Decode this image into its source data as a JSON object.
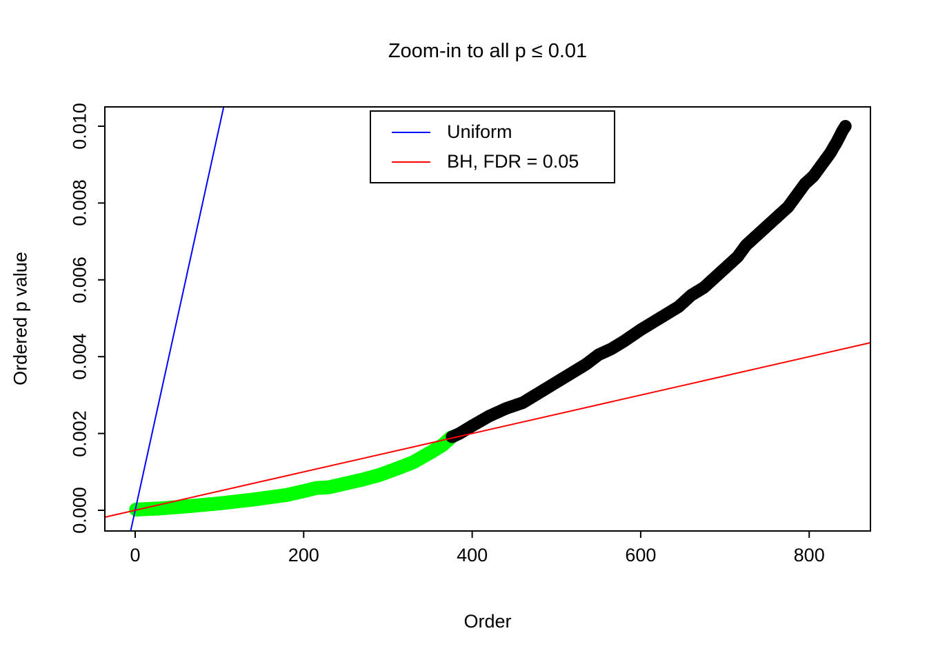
{
  "chart_data": {
    "type": "scatter",
    "title": "Zoom-in to all p ≤ 0.01",
    "xlabel": "Order",
    "ylabel": "Ordered p value",
    "xlim": [
      -36,
      873
    ],
    "ylim": [
      -0.00054,
      0.0105
    ],
    "x_ticks": [
      0,
      200,
      400,
      600,
      800
    ],
    "x_tick_labels": [
      "0",
      "200",
      "400",
      "600",
      "800"
    ],
    "y_ticks": [
      0.0,
      0.002,
      0.004,
      0.006,
      0.008,
      0.01
    ],
    "y_tick_labels": [
      "0.000",
      "0.002",
      "0.004",
      "0.006",
      "0.008",
      "0.010"
    ],
    "n_points": 843,
    "significant_threshold_order": 375,
    "colors": {
      "significant": "#00ff00",
      "nonsignificant": "#000000",
      "uniform_line": "#0000ff",
      "bh_line": "#ff0000",
      "frame": "#000000",
      "background": "#ffffff"
    },
    "curve_anchors": [
      [
        1,
        2e-05
      ],
      [
        30,
        5e-05
      ],
      [
        60,
        0.0001
      ],
      [
        100,
        0.00018
      ],
      [
        140,
        0.00028
      ],
      [
        180,
        0.0004
      ],
      [
        200,
        0.0005
      ],
      [
        215,
        0.00058
      ],
      [
        230,
        0.0006
      ],
      [
        250,
        0.0007
      ],
      [
        270,
        0.0008
      ],
      [
        290,
        0.00092
      ],
      [
        310,
        0.00108
      ],
      [
        330,
        0.00125
      ],
      [
        350,
        0.0015
      ],
      [
        365,
        0.0017
      ],
      [
        375,
        0.0019
      ],
      [
        385,
        0.002
      ],
      [
        400,
        0.0022
      ],
      [
        420,
        0.00245
      ],
      [
        440,
        0.00265
      ],
      [
        460,
        0.0028
      ],
      [
        475,
        0.003
      ],
      [
        490,
        0.0032
      ],
      [
        505,
        0.0034
      ],
      [
        520,
        0.0036
      ],
      [
        535,
        0.0038
      ],
      [
        550,
        0.00405
      ],
      [
        565,
        0.0042
      ],
      [
        580,
        0.0044
      ],
      [
        600,
        0.0047
      ],
      [
        615,
        0.0049
      ],
      [
        630,
        0.0051
      ],
      [
        645,
        0.0053
      ],
      [
        660,
        0.0056
      ],
      [
        675,
        0.0058
      ],
      [
        685,
        0.006
      ],
      [
        695,
        0.0062
      ],
      [
        705,
        0.0064
      ],
      [
        715,
        0.0066
      ],
      [
        725,
        0.0069
      ],
      [
        735,
        0.0071
      ],
      [
        745,
        0.0073
      ],
      [
        755,
        0.0075
      ],
      [
        765,
        0.0077
      ],
      [
        775,
        0.0079
      ],
      [
        785,
        0.0082
      ],
      [
        795,
        0.0085
      ],
      [
        805,
        0.0087
      ],
      [
        815,
        0.009
      ],
      [
        825,
        0.0093
      ],
      [
        833,
        0.0096
      ],
      [
        840,
        0.0099
      ],
      [
        843,
        0.01
      ]
    ],
    "lines": [
      {
        "name": "Uniform",
        "color": "#0000ff",
        "slope": 0.0001,
        "intercept": 0
      },
      {
        "name": "BH, FDR = 0.05",
        "color": "#ff0000",
        "slope": 5e-06,
        "intercept": 0
      }
    ],
    "legend": {
      "position": "top-center",
      "entries": [
        {
          "label": "Uniform",
          "color": "#0000ff"
        },
        {
          "label": "BH, FDR = 0.05",
          "color": "#ff0000"
        }
      ]
    },
    "grid": false
  }
}
